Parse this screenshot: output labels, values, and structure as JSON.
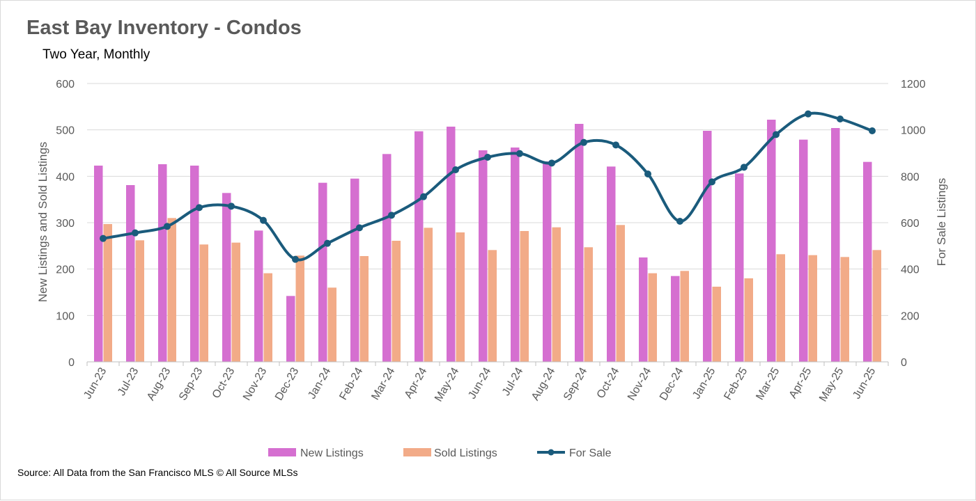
{
  "chart_data": {
    "type": "bar",
    "title": "East Bay Inventory - Condos",
    "subtitle": "Two Year, Monthly",
    "categories": [
      "Jun-23",
      "Jul-23",
      "Aug-23",
      "Sep-23",
      "Oct-23",
      "Nov-23",
      "Dec-23",
      "Jan-24",
      "Feb-24",
      "Mar-24",
      "Apr-24",
      "May-24",
      "Jun-24",
      "Jul-24",
      "Aug-24",
      "Sep-24",
      "Oct-24",
      "Nov-24",
      "Dec-24",
      "Jan-25",
      "Feb-25",
      "Mar-25",
      "Apr-25",
      "May-25",
      "Jun-25"
    ],
    "series": [
      {
        "name": "New Listings",
        "type": "bar",
        "axis": "left",
        "color": "#d56fd0",
        "values": [
          423,
          381,
          426,
          423,
          364,
          283,
          142,
          386,
          395,
          448,
          497,
          507,
          456,
          462,
          432,
          513,
          421,
          225,
          185,
          498,
          406,
          522,
          479,
          504,
          431
        ]
      },
      {
        "name": "Sold Listings",
        "type": "bar",
        "axis": "left",
        "color": "#f2ab88",
        "values": [
          297,
          262,
          310,
          253,
          257,
          191,
          229,
          160,
          228,
          261,
          289,
          279,
          241,
          282,
          290,
          247,
          295,
          191,
          196,
          162,
          180,
          232,
          230,
          226,
          241
        ]
      },
      {
        "name": "For Sale",
        "type": "line",
        "axis": "right",
        "color": "#1a5b7c",
        "smooth": true,
        "markers": true,
        "values": [
          532,
          556,
          584,
          665,
          671,
          610,
          442,
          511,
          578,
          632,
          712,
          828,
          882,
          898,
          857,
          946,
          935,
          810,
          606,
          776,
          839,
          980,
          1069,
          1047,
          996
        ]
      }
    ],
    "ylabel": "New Listings and Sold Listings",
    "y2label": "For Sale Listings",
    "ylim": [
      0,
      600
    ],
    "y2lim": [
      0,
      1200
    ],
    "yticks": [
      "0",
      "100",
      "200",
      "300",
      "400",
      "500",
      "600"
    ],
    "y2ticks": [
      "0",
      "200",
      "400",
      "600",
      "800",
      "1000",
      "1200"
    ],
    "grid": "horizontal",
    "legend_position": "bottom",
    "source": "Source: All Data from the San Francisco MLS © All Source MLSs"
  }
}
